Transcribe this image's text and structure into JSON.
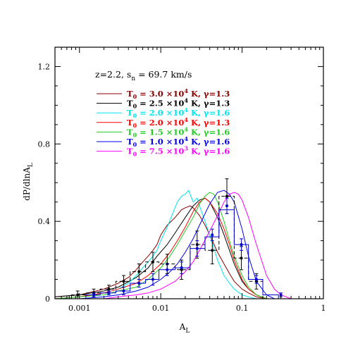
{
  "chart_data": {
    "type": "line",
    "xlabel_main": "A",
    "xlabel_sub": "L",
    "ylabel_main": "dP/dlnA",
    "ylabel_sub": "L",
    "xscale": "log",
    "xlim": [
      0.0005,
      1.0
    ],
    "ylim": [
      0,
      1.3
    ],
    "x_ticks": [
      {
        "value": 0.001,
        "label": "0.001"
      },
      {
        "value": 0.01,
        "label": "0.01"
      },
      {
        "value": 0.1,
        "label": "0.1"
      },
      {
        "value": 1,
        "label": "1"
      }
    ],
    "y_ticks": [
      {
        "value": 0,
        "label": "0"
      },
      {
        "value": 0.4,
        "label": "0.4"
      },
      {
        "value": 0.8,
        "label": "0.8"
      },
      {
        "value": 1.2,
        "label": "1.2"
      }
    ],
    "annotation": {
      "prefix": "z=2.2, s",
      "sub": "n",
      "suffix": " = 69.7 km/s"
    },
    "series": [
      {
        "name": "T0 = 3.0 ×10⁴ K, γ=1.3",
        "label": {
          "sub": "0",
          "mid": " = 3.0 ×10",
          "sup": "4",
          "tail": " K, γ=1.3"
        },
        "color": "#8b0000",
        "x": [
          0.0005,
          0.001,
          0.002,
          0.003,
          0.004,
          0.005,
          0.006,
          0.007,
          0.008,
          0.009,
          0.01,
          0.012,
          0.015,
          0.018,
          0.02,
          0.023,
          0.025,
          0.03,
          0.035,
          0.04,
          0.05,
          0.06,
          0.07,
          0.08,
          0.1,
          0.12,
          0.15,
          0.2
        ],
        "y": [
          0.01,
          0.02,
          0.05,
          0.08,
          0.11,
          0.15,
          0.19,
          0.22,
          0.25,
          0.28,
          0.33,
          0.38,
          0.42,
          0.46,
          0.47,
          0.48,
          0.47,
          0.43,
          0.38,
          0.33,
          0.24,
          0.18,
          0.13,
          0.09,
          0.05,
          0.03,
          0.01,
          0.0
        ]
      },
      {
        "name": "T0 = 2.5 ×10⁴ K, γ=1.3",
        "label": {
          "sub": "0",
          "mid": " = 2.5 ×10",
          "sup": "4",
          "tail": " K, γ=1.3"
        },
        "color": "#000000",
        "x": [
          0.0005,
          0.001,
          0.002,
          0.003,
          0.005,
          0.007,
          0.009,
          0.012,
          0.015,
          0.02,
          0.025,
          0.03,
          0.035,
          0.04,
          0.05,
          0.06,
          0.07,
          0.08,
          0.1,
          0.12,
          0.15,
          0.2
        ],
        "y": [
          0.01,
          0.02,
          0.04,
          0.06,
          0.11,
          0.16,
          0.22,
          0.28,
          0.34,
          0.42,
          0.48,
          0.51,
          0.52,
          0.5,
          0.42,
          0.33,
          0.25,
          0.18,
          0.09,
          0.05,
          0.02,
          0.0
        ]
      },
      {
        "name": "T0 = 2.0 ×10⁴ K, γ=1.6",
        "label": {
          "sub": "0",
          "mid": " = 2.0 ×10",
          "sup": "4",
          "tail": " K, γ=1.6"
        },
        "color": "#00e5ee",
        "x": [
          0.0005,
          0.001,
          0.002,
          0.003,
          0.004,
          0.005,
          0.006,
          0.007,
          0.008,
          0.009,
          0.01,
          0.012,
          0.014,
          0.016,
          0.018,
          0.02,
          0.022,
          0.025,
          0.028,
          0.03,
          0.035,
          0.04,
          0.05,
          0.06,
          0.07,
          0.08,
          0.1,
          0.12,
          0.15,
          0.2
        ],
        "y": [
          0.0,
          0.01,
          0.03,
          0.05,
          0.08,
          0.12,
          0.16,
          0.19,
          0.22,
          0.25,
          0.3,
          0.37,
          0.44,
          0.5,
          0.53,
          0.54,
          0.56,
          0.5,
          0.52,
          0.48,
          0.4,
          0.33,
          0.2,
          0.12,
          0.08,
          0.05,
          0.02,
          0.01,
          0.0,
          0.0
        ]
      },
      {
        "name": "T0 = 2.0 ×10⁴ K, γ=1.3",
        "label": {
          "sub": "0",
          "mid": " = 2.0 ×10",
          "sup": "4",
          "tail": " K, γ=1.3"
        },
        "color": "#ff0000",
        "x": [
          0.0005,
          0.001,
          0.002,
          0.003,
          0.005,
          0.007,
          0.01,
          0.013,
          0.016,
          0.02,
          0.025,
          0.03,
          0.035,
          0.04,
          0.05,
          0.06,
          0.07,
          0.08,
          0.1,
          0.12,
          0.15,
          0.2
        ],
        "y": [
          0.0,
          0.01,
          0.03,
          0.05,
          0.08,
          0.12,
          0.18,
          0.24,
          0.3,
          0.37,
          0.45,
          0.5,
          0.52,
          0.5,
          0.44,
          0.36,
          0.28,
          0.2,
          0.1,
          0.05,
          0.02,
          0.0
        ]
      },
      {
        "name": "T0 = 1.5 ×10⁴ K, γ=1.6",
        "label": {
          "sub": "0",
          "mid": " = 1.5 ×10",
          "sup": "4",
          "tail": " K, γ=1.6"
        },
        "color": "#22cc22",
        "x": [
          0.0005,
          0.001,
          0.002,
          0.003,
          0.005,
          0.007,
          0.01,
          0.013,
          0.016,
          0.02,
          0.025,
          0.03,
          0.035,
          0.04,
          0.045,
          0.05,
          0.06,
          0.07,
          0.08,
          0.1,
          0.12,
          0.15,
          0.2
        ],
        "y": [
          0.0,
          0.01,
          0.02,
          0.04,
          0.06,
          0.1,
          0.16,
          0.22,
          0.28,
          0.35,
          0.42,
          0.49,
          0.53,
          0.55,
          0.54,
          0.5,
          0.4,
          0.3,
          0.22,
          0.12,
          0.06,
          0.02,
          0.0
        ]
      },
      {
        "name": "T0 = 1.0 ×10⁴ K, γ=1.6",
        "label": {
          "sub": "0",
          "mid": " = 1.0 ×10",
          "sup": "4",
          "tail": " K, γ=1.6"
        },
        "color": "#0000ee",
        "x": [
          0.0005,
          0.001,
          0.002,
          0.003,
          0.005,
          0.007,
          0.01,
          0.013,
          0.016,
          0.02,
          0.025,
          0.03,
          0.035,
          0.04,
          0.05,
          0.06,
          0.07,
          0.08,
          0.1,
          0.12,
          0.15,
          0.2,
          0.25
        ],
        "y": [
          0.0,
          0.0,
          0.01,
          0.02,
          0.04,
          0.06,
          0.1,
          0.14,
          0.18,
          0.24,
          0.31,
          0.38,
          0.44,
          0.49,
          0.55,
          0.56,
          0.54,
          0.5,
          0.36,
          0.22,
          0.09,
          0.02,
          0.0
        ]
      },
      {
        "name": "T0 = 7.5 ×10³ K, γ=1.6",
        "label": {
          "sub": "0",
          "mid": " = 7.5 ×10",
          "sup": "3",
          "tail": " K, γ=1.6"
        },
        "color": "#ff00ff",
        "x": [
          0.0005,
          0.001,
          0.002,
          0.003,
          0.005,
          0.007,
          0.01,
          0.015,
          0.02,
          0.025,
          0.03,
          0.04,
          0.05,
          0.06,
          0.07,
          0.08,
          0.09,
          0.1,
          0.12,
          0.15,
          0.2,
          0.25,
          0.3,
          0.4
        ],
        "y": [
          0.0,
          0.0,
          0.0,
          0.01,
          0.02,
          0.03,
          0.05,
          0.09,
          0.14,
          0.19,
          0.25,
          0.35,
          0.43,
          0.5,
          0.54,
          0.55,
          0.54,
          0.51,
          0.42,
          0.28,
          0.12,
          0.05,
          0.02,
          0.0
        ]
      }
    ],
    "observed_black": {
      "name": "observed (dashed histogram)",
      "color": "#000000",
      "bin_edges": [
        0.00075,
        0.0012,
        0.0018,
        0.0028,
        0.0042,
        0.0065,
        0.0095,
        0.015,
        0.023,
        0.035,
        0.052,
        0.08,
        0.12,
        0.18
      ],
      "values": [
        0.02,
        0.03,
        0.05,
        0.09,
        0.14,
        0.19,
        0.18,
        0.15,
        0.28,
        0.25,
        0.53,
        0.21,
        0.09
      ],
      "points_x": [
        0.00095,
        0.0015,
        0.0023,
        0.0035,
        0.0054,
        0.008,
        0.012,
        0.018,
        0.028,
        0.043,
        0.065,
        0.098,
        0.15
      ],
      "points_y": [
        0.02,
        0.03,
        0.05,
        0.09,
        0.14,
        0.19,
        0.18,
        0.15,
        0.28,
        0.25,
        0.53,
        0.21,
        0.09
      ],
      "err": [
        0.02,
        0.02,
        0.02,
        0.03,
        0.04,
        0.05,
        0.05,
        0.05,
        0.07,
        0.07,
        0.09,
        0.06,
        0.04
      ]
    },
    "observed_blue": {
      "name": "observed (solid histogram)",
      "color": "#0000cc",
      "bin_edges": [
        0.0012,
        0.0018,
        0.0028,
        0.0042,
        0.0065,
        0.0095,
        0.015,
        0.023,
        0.035,
        0.052,
        0.08,
        0.12,
        0.18,
        0.28
      ],
      "values": [
        0.02,
        0.03,
        0.04,
        0.08,
        0.1,
        0.15,
        0.16,
        0.26,
        0.32,
        0.46,
        0.28,
        0.1,
        0.02
      ],
      "points_x": [
        0.0015,
        0.0023,
        0.0035,
        0.0054,
        0.008,
        0.012,
        0.018,
        0.028,
        0.043,
        0.065,
        0.098,
        0.15,
        0.3
      ],
      "points_y": [
        0.02,
        0.03,
        0.04,
        0.08,
        0.1,
        0.15,
        0.16,
        0.26,
        0.33,
        0.48,
        0.28,
        0.1,
        0.02
      ],
      "err": [
        0.01,
        0.01,
        0.02,
        0.02,
        0.03,
        0.03,
        0.03,
        0.04,
        0.03,
        0.04,
        0.03,
        0.02,
        0.01
      ]
    },
    "grid": false,
    "legend_position": "top-left"
  }
}
